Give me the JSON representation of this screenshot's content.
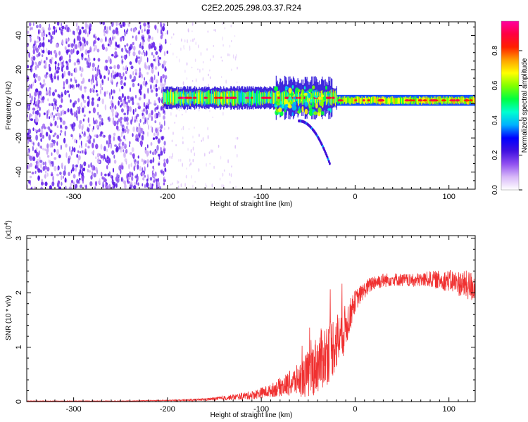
{
  "title": "C2E2.2025.298.03.37.R24",
  "chart_data": [
    {
      "type": "heatmap",
      "title": "C2E2.2025.298.03.37.R24",
      "xlabel": "Height of straight line (km)",
      "ylabel": "Frequency (Hz)",
      "xlim": [
        -350,
        128
      ],
      "ylim": [
        -50,
        48
      ],
      "xticks": [
        "-300",
        "-200",
        "-100",
        "0",
        "100"
      ],
      "xtick_values": [
        -300,
        -200,
        -100,
        0,
        100
      ],
      "yticks": [
        "-40",
        "-20",
        "0",
        "20",
        "40"
      ],
      "ytick_values": [
        -40,
        -20,
        0,
        20,
        40
      ],
      "colorbar": {
        "label": "Normalized spectral amplitude",
        "range": [
          0,
          0.97
        ],
        "ticks": [
          "0.0",
          "0.2",
          "0.4",
          "0.6",
          "0.8"
        ],
        "tick_values": [
          0,
          0.2,
          0.4,
          0.6,
          0.8
        ],
        "colors": [
          "#ffffff",
          "#d8b8f8",
          "#9050f0",
          "#4010e0",
          "#0000ff",
          "#00b0ff",
          "#00ffd0",
          "#00ff40",
          "#80ff00",
          "#ffff00",
          "#ffa000",
          "#ff2000",
          "#ff0040",
          "#ff00a0"
        ]
      },
      "features": {
        "noise_region_km": [
          -350,
          -205
        ],
        "band_start_km": -205,
        "band_center_hz": 2,
        "dispersion_arc_km": [
          -60,
          -27
        ],
        "dispersion_arc_hz": [
          -10,
          -35
        ]
      }
    },
    {
      "type": "line",
      "xlabel": "Height of straight line (km)",
      "ylabel": "SNR (10 * v/v)",
      "y_multiplier": "(x10",
      "y_multiplier_exp": "4",
      "y_multiplier_close": ")",
      "xlim": [
        -350,
        128
      ],
      "ylim": [
        0,
        3.05
      ],
      "xticks": [
        "-300",
        "-200",
        "-100",
        "0",
        "100"
      ],
      "xtick_values": [
        -300,
        -200,
        -100,
        0,
        100
      ],
      "yticks": [
        "0",
        "1",
        "2",
        "3"
      ],
      "ytick_values": [
        0,
        1,
        2,
        3
      ],
      "series": [
        {
          "name": "SNR",
          "color": "#f03030",
          "x": [
            -350,
            -250,
            -200,
            -170,
            -150,
            -130,
            -110,
            -90,
            -75,
            -60,
            -50,
            -40,
            -30,
            -20,
            -12,
            -5,
            0,
            10,
            20,
            40,
            60,
            80,
            100,
            128
          ],
          "y": [
            0.01,
            0.01,
            0.02,
            0.03,
            0.05,
            0.08,
            0.12,
            0.2,
            0.3,
            0.4,
            0.5,
            0.7,
            0.9,
            1.1,
            1.3,
            1.6,
            1.85,
            2.05,
            2.2,
            2.25,
            2.22,
            2.25,
            2.22,
            2.1
          ],
          "spread": [
            0.005,
            0.005,
            0.01,
            0.02,
            0.03,
            0.05,
            0.08,
            0.12,
            0.2,
            0.3,
            0.45,
            0.55,
            0.6,
            0.55,
            0.45,
            0.3,
            0.2,
            0.15,
            0.15,
            0.12,
            0.12,
            0.15,
            0.2,
            0.3
          ]
        }
      ]
    }
  ]
}
